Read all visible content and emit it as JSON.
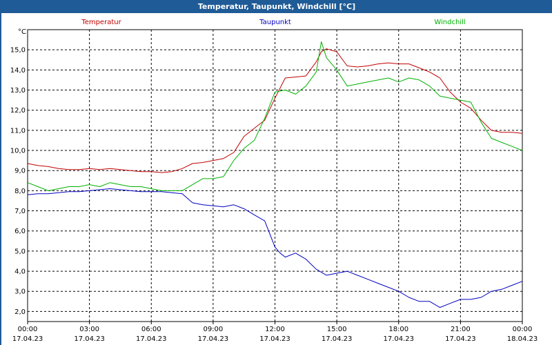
{
  "window": {
    "title": "Temperatur, Taupunkt, Windchill [°C]"
  },
  "chart_data": {
    "type": "line",
    "title": "Temperatur, Taupunkt, Windchill [°C]",
    "ylabel": "°C",
    "xlabel": "",
    "ylim": [
      1.5,
      16.0
    ],
    "yticks": [
      2.0,
      3.0,
      4.0,
      5.0,
      6.0,
      7.0,
      8.0,
      9.0,
      10.0,
      11.0,
      12.0,
      13.0,
      14.0,
      15.0
    ],
    "ytick_labels": [
      "2,0",
      "3,0",
      "4,0",
      "5,0",
      "6,0",
      "7,0",
      "8,0",
      "9,0",
      "10,0",
      "11,0",
      "12,0",
      "13,0",
      "14,0",
      "15,0"
    ],
    "xlim": [
      0,
      24
    ],
    "xticks": [
      0,
      3,
      6,
      9,
      12,
      15,
      18,
      21,
      24
    ],
    "xtick_times": [
      "00:00",
      "03:00",
      "06:00",
      "09:00",
      "12:00",
      "15:00",
      "18:00",
      "21:00",
      "00:00"
    ],
    "xtick_dates": [
      "17.04.23",
      "17.04.23",
      "17.04.23",
      "17.04.23",
      "17.04.23",
      "17.04.23",
      "17.04.23",
      "17.04.23",
      "18.04.23"
    ],
    "grid": true,
    "legend": "top",
    "series": [
      {
        "name": "Temperatur",
        "color": "#c00000",
        "x": [
          0,
          0.5,
          1,
          1.5,
          2,
          2.5,
          3,
          3.5,
          4,
          4.5,
          5,
          5.5,
          6,
          6.5,
          7,
          7.5,
          8,
          8.5,
          9,
          9.5,
          10,
          10.25,
          10.5,
          11,
          11.5,
          12,
          12.5,
          13,
          13.5,
          14,
          14.25,
          14.5,
          15,
          15.5,
          16,
          16.5,
          17,
          17.5,
          18,
          18.5,
          19,
          19.5,
          20,
          20.5,
          21,
          21.5,
          22,
          22.5,
          23,
          23.5,
          24
        ],
        "y": [
          9.35,
          9.25,
          9.2,
          9.1,
          9.05,
          9.05,
          9.1,
          9.05,
          9.1,
          9.05,
          9.0,
          8.95,
          8.95,
          8.9,
          8.95,
          9.1,
          9.35,
          9.4,
          9.5,
          9.6,
          9.9,
          10.3,
          10.7,
          11.1,
          11.5,
          12.6,
          13.6,
          13.65,
          13.7,
          14.4,
          14.9,
          15.05,
          14.9,
          14.2,
          14.15,
          14.2,
          14.3,
          14.35,
          14.3,
          14.3,
          14.1,
          13.9,
          13.6,
          12.9,
          12.4,
          12.1,
          11.5,
          11.0,
          10.9,
          10.9,
          10.85
        ]
      },
      {
        "name": "Taupunkt",
        "color": "#0000c0",
        "x": [
          0,
          0.5,
          1,
          1.5,
          2,
          2.5,
          3,
          3.5,
          4,
          4.5,
          5,
          5.5,
          6,
          6.5,
          7,
          7.5,
          8,
          8.5,
          9,
          9.5,
          10,
          10.5,
          11,
          11.5,
          12,
          12.25,
          12.5,
          13,
          13.5,
          14,
          14.5,
          15,
          15.5,
          16,
          16.5,
          17,
          17.5,
          18,
          18.5,
          19,
          19.5,
          20,
          20.5,
          21,
          21.5,
          22,
          22.5,
          23,
          23.5,
          24
        ],
        "y": [
          7.8,
          7.85,
          7.85,
          7.9,
          7.95,
          7.95,
          8.0,
          8.05,
          8.1,
          8.05,
          8.0,
          7.95,
          7.95,
          7.95,
          7.9,
          7.85,
          7.4,
          7.3,
          7.25,
          7.2,
          7.3,
          7.1,
          6.8,
          6.5,
          5.2,
          4.9,
          4.7,
          4.9,
          4.6,
          4.1,
          3.8,
          3.9,
          4.0,
          3.8,
          3.6,
          3.4,
          3.2,
          3.0,
          2.7,
          2.5,
          2.5,
          2.2,
          2.4,
          2.6,
          2.6,
          2.7,
          3.0,
          3.1,
          3.3,
          3.5
        ]
      },
      {
        "name": "Windchill",
        "color": "#00b000",
        "x": [
          0,
          0.5,
          1,
          1.5,
          2,
          2.5,
          3,
          3.5,
          4,
          4.5,
          5,
          5.5,
          6,
          6.5,
          7,
          7.5,
          8,
          8.5,
          9,
          9.5,
          10,
          10.5,
          11,
          11.5,
          12,
          12.5,
          13,
          13.5,
          14,
          14.25,
          14.5,
          15,
          15.5,
          16,
          16.5,
          17,
          17.5,
          18,
          18.5,
          19,
          19.5,
          20,
          20.5,
          21,
          21.5,
          22,
          22.5,
          23,
          23.5,
          24
        ],
        "y": [
          8.4,
          8.2,
          8.0,
          8.1,
          8.2,
          8.2,
          8.3,
          8.2,
          8.4,
          8.3,
          8.2,
          8.2,
          8.1,
          8.0,
          8.0,
          8.0,
          8.3,
          8.6,
          8.6,
          8.7,
          9.5,
          10.1,
          10.5,
          11.6,
          12.9,
          13.0,
          12.8,
          13.2,
          13.9,
          15.4,
          14.6,
          14.0,
          13.2,
          13.3,
          13.4,
          13.5,
          13.6,
          13.4,
          13.6,
          13.5,
          13.2,
          12.7,
          12.6,
          12.5,
          12.4,
          11.4,
          10.6,
          10.4,
          10.2,
          10.0
        ]
      }
    ]
  }
}
